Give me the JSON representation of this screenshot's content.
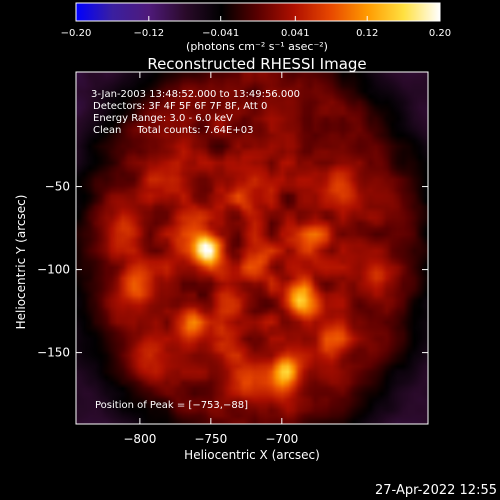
{
  "chart_data": {
    "type": "heatmap",
    "title": "Reconstructed RHESSI Image",
    "xlabel": "Heliocentric X (arcsec)",
    "ylabel": "Heliocentric Y (arcsec)",
    "xlim": [
      -845,
      -597
    ],
    "ylim": [
      -193,
      19
    ],
    "x_ticks": [
      -800,
      -750,
      -700
    ],
    "x_tick_labels": [
      "−800",
      "−750",
      "−700"
    ],
    "y_ticks": [
      -50,
      -100,
      -150
    ],
    "y_tick_labels": [
      "−50",
      "−100",
      "−150"
    ],
    "colorbar": {
      "min": -0.2,
      "max": 0.2,
      "ticks": [
        -0.2,
        -0.12,
        -0.041,
        0.041,
        0.12,
        0.2
      ],
      "tick_labels": [
        "−0.20",
        "−0.12",
        "−0.041",
        "0.041",
        "0.12",
        "0.20"
      ],
      "units": "(photons cm⁻² s⁻¹ asec⁻²)",
      "colormap": [
        "#0000ff",
        "#3a1fa0",
        "#4f1a7a",
        "#2a0a2a",
        "#000000",
        "#5a0000",
        "#b01000",
        "#e84800",
        "#ff9a00",
        "#ffe040",
        "#ffffff"
      ]
    },
    "peak": {
      "x": -753,
      "y": -88,
      "value": 0.2
    },
    "sources": [
      {
        "x": -753,
        "y": -88,
        "sigma": 6,
        "amp": 0.2
      },
      {
        "x": -767,
        "y": -78,
        "sigma": 9,
        "amp": 0.06
      },
      {
        "x": -688,
        "y": -116,
        "sigma": 7,
        "amp": 0.12
      },
      {
        "x": -681,
        "y": -124,
        "sigma": 8,
        "amp": 0.06
      },
      {
        "x": -697,
        "y": -160,
        "sigma": 7,
        "amp": 0.12
      },
      {
        "x": -703,
        "y": -170,
        "sigma": 9,
        "amp": 0.05
      },
      {
        "x": -762,
        "y": -133,
        "sigma": 7,
        "amp": 0.1
      },
      {
        "x": -742,
        "y": -142,
        "sigma": 7,
        "amp": 0.06
      },
      {
        "x": -719,
        "y": -96,
        "sigma": 8,
        "amp": 0.07
      },
      {
        "x": -724,
        "y": -57,
        "sigma": 8,
        "amp": 0.05
      },
      {
        "x": -679,
        "y": -81,
        "sigma": 8,
        "amp": 0.06
      },
      {
        "x": -658,
        "y": -51,
        "sigma": 9,
        "amp": 0.05
      },
      {
        "x": -801,
        "y": -110,
        "sigma": 9,
        "amp": 0.07
      },
      {
        "x": -811,
        "y": -75,
        "sigma": 9,
        "amp": 0.06
      },
      {
        "x": -794,
        "y": -151,
        "sigma": 9,
        "amp": 0.05
      },
      {
        "x": -664,
        "y": -142,
        "sigma": 8,
        "amp": 0.07
      },
      {
        "x": -736,
        "y": -120,
        "sigma": 8,
        "amp": 0.06
      },
      {
        "x": -726,
        "y": -165,
        "sigma": 9,
        "amp": 0.05
      },
      {
        "x": -781,
        "y": -43,
        "sigma": 10,
        "amp": 0.05
      },
      {
        "x": -633,
        "y": -106,
        "sigma": 8,
        "amp": 0.05
      }
    ],
    "background_level": 0.02,
    "halo_falloff": 0.08
  },
  "annotations": {
    "time_range": "3-Jan-2003 13:48:52.000 to 13:49:56.000",
    "detectors": "Detectors: 3F 4F 5F 6F 7F 8F, Att 0",
    "energy_range": "Energy Range: 3.0 - 6.0 keV",
    "clean_total": "Clean     Total counts: 7.64E+03",
    "peak_position": "Position of Peak = [−753,−88]"
  },
  "footer": {
    "timestamp": "27-Apr-2022 12:55"
  }
}
